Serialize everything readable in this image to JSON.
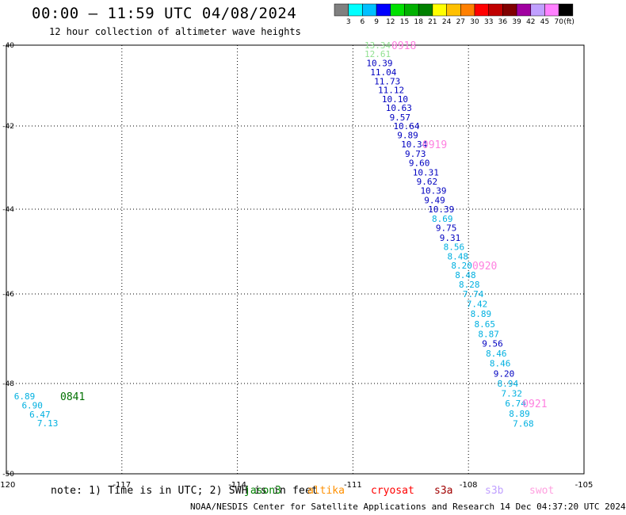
{
  "title": "00:00 – 11:59 UTC 04/08/2024",
  "subtitle": "12 hour collection of altimeter wave heights",
  "colorbar": {
    "colors": [
      "#808080",
      "#00ffff",
      "#00c0ff",
      "#0000ff",
      "#00e000",
      "#00b000",
      "#008000",
      "#ffff00",
      "#ffc000",
      "#ff8000",
      "#ff0000",
      "#c00000",
      "#800000",
      "#a000a0",
      "#c0a0ff",
      "#ff80ff",
      "#000000"
    ],
    "labels": [
      "3",
      "6",
      "9",
      "12",
      "15",
      "18",
      "21",
      "24",
      "27",
      "30",
      "33",
      "36",
      "39",
      "42",
      "45",
      "70"
    ],
    "unit": "(ft)"
  },
  "chart_data": {
    "type": "scatter",
    "x_ticks": [
      "-120",
      "-117",
      "-114",
      "-111",
      "-108",
      "-105"
    ],
    "y_ticks": [
      "-40",
      "-42",
      "-44",
      "-46",
      "-48",
      "-50"
    ],
    "xlim": [
      -120,
      -105
    ],
    "ylim": [
      -50,
      -40
    ],
    "grid": true,
    "points": [
      {
        "lon": -110.7,
        "lat": -40.0,
        "label": "13.34",
        "color": "#90e090"
      },
      {
        "lon": -110.7,
        "lat": -40.22,
        "label": "12.61",
        "color": "#90e090"
      },
      {
        "lon": -110.65,
        "lat": -40.44,
        "label": "10.39",
        "color": "#0000c0"
      },
      {
        "lon": -110.55,
        "lat": -40.67,
        "label": "11.04",
        "color": "#0000c0"
      },
      {
        "lon": -110.45,
        "lat": -40.89,
        "label": "11.73",
        "color": "#0000c0"
      },
      {
        "lon": -110.35,
        "lat": -41.11,
        "label": "11.12",
        "color": "#0000c0"
      },
      {
        "lon": -110.25,
        "lat": -41.33,
        "label": "10.10",
        "color": "#0000c0"
      },
      {
        "lon": -110.15,
        "lat": -41.55,
        "label": "10.63",
        "color": "#0000c0"
      },
      {
        "lon": -110.05,
        "lat": -41.78,
        "label": "9.57",
        "color": "#0000c0"
      },
      {
        "lon": -109.95,
        "lat": -42.0,
        "label": "10.64",
        "color": "#0000c0"
      },
      {
        "lon": -109.85,
        "lat": -42.22,
        "label": "9.89",
        "color": "#0000c0"
      },
      {
        "lon": -109.75,
        "lat": -42.44,
        "label": "10.34",
        "color": "#0000c0"
      },
      {
        "lon": -109.65,
        "lat": -42.67,
        "label": "9.73",
        "color": "#0000c0"
      },
      {
        "lon": -109.55,
        "lat": -42.89,
        "label": "9.60",
        "color": "#0000c0"
      },
      {
        "lon": -109.45,
        "lat": -43.11,
        "label": "10.31",
        "color": "#0000c0"
      },
      {
        "lon": -109.35,
        "lat": -43.33,
        "label": "9.62",
        "color": "#0000c0"
      },
      {
        "lon": -109.25,
        "lat": -43.55,
        "label": "10.39",
        "color": "#0000c0"
      },
      {
        "lon": -109.15,
        "lat": -43.78,
        "label": "9.49",
        "color": "#0000c0"
      },
      {
        "lon": -109.05,
        "lat": -44.0,
        "label": "10.39",
        "color": "#0000c0"
      },
      {
        "lon": -108.95,
        "lat": -44.22,
        "label": "8.69",
        "color": "#00b0e0"
      },
      {
        "lon": -108.85,
        "lat": -44.44,
        "label": "9.75",
        "color": "#0000c0"
      },
      {
        "lon": -108.75,
        "lat": -44.67,
        "label": "9.31",
        "color": "#0000c0"
      },
      {
        "lon": -108.65,
        "lat": -44.89,
        "label": "8.56",
        "color": "#00b0e0"
      },
      {
        "lon": -108.55,
        "lat": -45.11,
        "label": "8.48",
        "color": "#00b0e0"
      },
      {
        "lon": -108.45,
        "lat": -45.33,
        "label": "8.20",
        "color": "#00b0e0"
      },
      {
        "lon": -108.35,
        "lat": -45.55,
        "label": "8.48",
        "color": "#00b0e0"
      },
      {
        "lon": -108.25,
        "lat": -45.78,
        "label": "8.28",
        "color": "#00b0e0"
      },
      {
        "lon": -108.15,
        "lat": -46.0,
        "label": "7.74",
        "color": "#00b0e0"
      },
      {
        "lon": -108.05,
        "lat": -46.22,
        "label": "7.42",
        "color": "#00b0e0"
      },
      {
        "lon": -107.95,
        "lat": -46.44,
        "label": "8.89",
        "color": "#00b0e0"
      },
      {
        "lon": -107.85,
        "lat": -46.67,
        "label": "8.65",
        "color": "#00b0e0"
      },
      {
        "lon": -107.75,
        "lat": -46.89,
        "label": "8.87",
        "color": "#00b0e0"
      },
      {
        "lon": -107.65,
        "lat": -47.11,
        "label": "9.56",
        "color": "#0000c0"
      },
      {
        "lon": -107.55,
        "lat": -47.33,
        "label": "8.46",
        "color": "#00b0e0"
      },
      {
        "lon": -107.45,
        "lat": -47.55,
        "label": "8.46",
        "color": "#00b0e0"
      },
      {
        "lon": -107.35,
        "lat": -47.78,
        "label": "9.20",
        "color": "#0000c0"
      },
      {
        "lon": -107.25,
        "lat": -48.0,
        "label": "8.94",
        "color": "#00b0e0"
      },
      {
        "lon": -107.15,
        "lat": -48.22,
        "label": "7.32",
        "color": "#00b0e0"
      },
      {
        "lon": -107.05,
        "lat": -48.44,
        "label": "6.74",
        "color": "#00b0e0"
      },
      {
        "lon": -106.95,
        "lat": -48.67,
        "label": "8.89",
        "color": "#00b0e0"
      },
      {
        "lon": -106.85,
        "lat": -48.89,
        "label": "7.68",
        "color": "#00b0e0"
      },
      {
        "lon": -119.8,
        "lat": -48.28,
        "label": "6.89",
        "color": "#00b0e0"
      },
      {
        "lon": -119.6,
        "lat": -48.48,
        "label": "6.90",
        "color": "#00b0e0"
      },
      {
        "lon": -119.4,
        "lat": -48.68,
        "label": "6.47",
        "color": "#00b0e0"
      },
      {
        "lon": -119.2,
        "lat": -48.88,
        "label": "7.13",
        "color": "#00b0e0"
      }
    ],
    "time_labels": [
      {
        "lon": -110.0,
        "lat": -40.0,
        "label": "0918",
        "color": "#ff80e0"
      },
      {
        "lon": -109.2,
        "lat": -42.44,
        "label": "0919",
        "color": "#ff80e0"
      },
      {
        "lon": -107.9,
        "lat": -45.33,
        "label": "0920",
        "color": "#ff80e0"
      },
      {
        "lon": -106.6,
        "lat": -48.44,
        "label": "0921",
        "color": "#ff80e0"
      },
      {
        "lon": -118.6,
        "lat": -48.28,
        "label": "0841",
        "color": "#007000"
      }
    ]
  },
  "note": "note: 1) Time is in UTC; 2) SWH is in feet",
  "satellites": [
    {
      "name": "jason3",
      "color": "#008000",
      "left": 308
    },
    {
      "name": "altika",
      "color": "#ff9000",
      "left": 388
    },
    {
      "name": "cryosat",
      "color": "#ff0000",
      "left": 468
    },
    {
      "name": "s3a",
      "color": "#a00000",
      "left": 548
    },
    {
      "name": "s3b",
      "color": "#c0a0ff",
      "left": 612
    },
    {
      "name": "swot",
      "color": "#ffa0e0",
      "left": 668
    }
  ],
  "footer": "NOAA/NESDIS Center for Satellite Applications and Research   14 Dec 04:37:20 UTC 2024"
}
